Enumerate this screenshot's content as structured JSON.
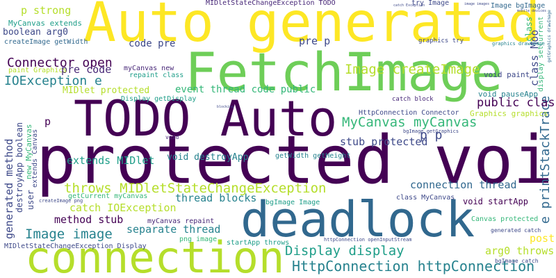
{
  "colors": {
    "background": "#ffffff",
    "dark_purple": "#440154",
    "purple": "#482878",
    "indigo": "#3e4989",
    "blue": "#31688e",
    "teal": "#26828e",
    "green_teal": "#1f9e89",
    "green": "#35b779",
    "light_green": "#6ece58",
    "lime": "#b5de2b",
    "yellow": "#fde725"
  },
  "words": {
    "w01": "protected void",
    "w02": "Auto generated",
    "w03": "TODO Auto",
    "w04": "FetchImage",
    "w05": "connection",
    "w06": "deadlock",
    "w07": "HttpConnection httpConnection",
    "w08": "throws MIDletStateChangeException",
    "w09": "Display display",
    "w10": "Image createImage",
    "w11": "MyCanvas myCanvas",
    "w12": "Connector open",
    "w13": "IOException e",
    "w14": "Image image",
    "w15": "catch IOException",
    "w16": "e printStackTrace",
    "w17": "generated method",
    "w18": "destroyApp boolean",
    "w19": "connection thread",
    "w20": "stub protected",
    "w21": "extends MIDlet",
    "w22": "void destroyApp",
    "w23": "method stub",
    "w24": "separate thread",
    "w25": "thread blocks",
    "w26": "pre code",
    "w27": "code pre",
    "w28": "pre p",
    "w29": "public class",
    "w30": "class Moo",
    "w31": "p strong",
    "w32": "void startApp",
    "w33": "arg0 throws",
    "w34": "post",
    "w35": "p p",
    "w36": "event thread code public",
    "w37": "MIDlet protected",
    "w38": "boolean arg0",
    "w39": "MyCanvas extends",
    "w40": "createImage getWidth",
    "w41": "paint Graphics",
    "w42": "repaint class",
    "w43": "myCanvas new",
    "w44": "Display getDisplay",
    "w45": "Graphics graphics",
    "w46": "void pauseApp",
    "w47": "void paint",
    "w48": "display setCurrent",
    "w49": "Image bgImage",
    "w50": "try Image",
    "w51": "MIDletStateChangeException TODO",
    "w52": "MIDletStateChangeException Display",
    "w53": "getWidth getHeight",
    "w54": "HttpConnection Connector",
    "w55": "bgImage Image",
    "w56": "class MyCanvas",
    "w57": "startApp throws",
    "w58": "myCanvas repaint",
    "w59": "Canvas protected",
    "w60": "png image",
    "w61": "user",
    "w62": "new MyCanvas",
    "w63": "extends Canvas",
    "w64": "getCurrent myCanvas",
    "w65": "generated catch",
    "w66": "bgImage catch",
    "w67": "createImage png",
    "w68": "httpConnection openInputStream",
    "w69": "graphics try",
    "w70": "catch block",
    "w71": "bgImage getGraphics",
    "w72": "graphics drawImage",
    "w73": "getGraphics drawImage",
    "w74": "class",
    "w75": "p",
    "w76": "void",
    "w77": "catch Exception",
    "w78": "mobile devices",
    "w79": "image images",
    "w80": "blocking"
  }
}
